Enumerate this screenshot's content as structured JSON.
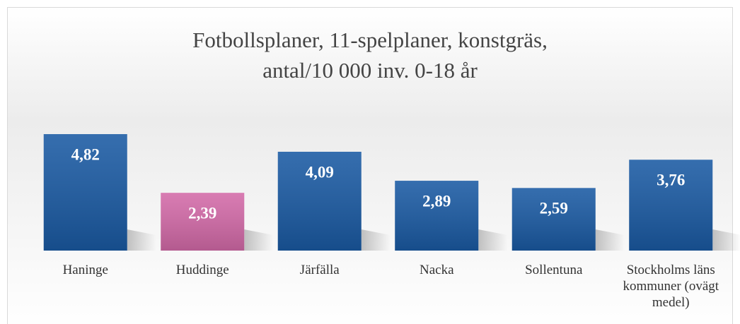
{
  "chart_data": {
    "type": "bar",
    "title": [
      "Fotbollsplaner, 11-spelplaner, konstgräs,",
      "antal/10 000 inv. 0-18 år"
    ],
    "categories": [
      "Haninge",
      "Huddinge",
      "Järfälla",
      "Nacka",
      "Sollentuna",
      "Stockholms läns kommuner (ovägt medel)"
    ],
    "values": [
      4.82,
      2.39,
      4.09,
      2.89,
      2.59,
      3.76
    ],
    "value_labels": [
      "4,82",
      "2,39",
      "4,09",
      "2,89",
      "2,59",
      "3,76"
    ],
    "colors": [
      "#1a5aa3",
      "#d36aa8",
      "#1a5aa3",
      "#1a5aa3",
      "#1a5aa3",
      "#1a5aa3"
    ]
  }
}
